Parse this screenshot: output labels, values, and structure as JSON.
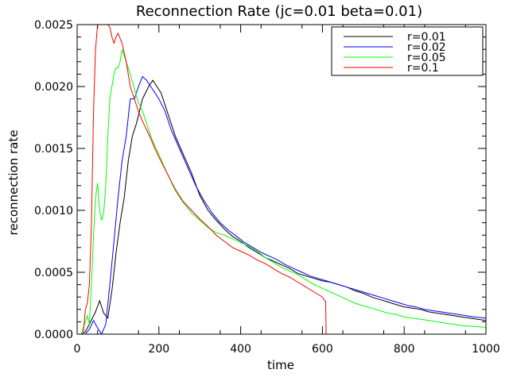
{
  "chart_data": {
    "type": "line",
    "title": "Reconnection Rate (jc=0.01 beta=0.01)",
    "xlabel": "time",
    "ylabel": "reconnection rate",
    "xlim": [
      0,
      1000
    ],
    "ylim": [
      0,
      0.0025
    ],
    "x_ticks": [
      "0",
      "200",
      "400",
      "600",
      "800",
      "1000"
    ],
    "y_ticks": [
      "0.0000",
      "0.0005",
      "0.0010",
      "0.0015",
      "0.0020",
      "0.0025"
    ],
    "legend_position": "top-right",
    "grid": false,
    "series": [
      {
        "name": "r=0.01",
        "color": "#000000",
        "points": [
          [
            10,
            0
          ],
          [
            20,
            2e-05
          ],
          [
            30,
            8e-05
          ],
          [
            45,
            0.00018
          ],
          [
            55,
            0.00027
          ],
          [
            65,
            0.00017
          ],
          [
            75,
            0.00013
          ],
          [
            85,
            0.00035
          ],
          [
            95,
            0.00065
          ],
          [
            105,
            0.0009
          ],
          [
            115,
            0.0011
          ],
          [
            125,
            0.0014
          ],
          [
            135,
            0.0016
          ],
          [
            145,
            0.0017
          ],
          [
            160,
            0.0019
          ],
          [
            175,
            0.002
          ],
          [
            185,
            0.00205
          ],
          [
            195,
            0.002
          ],
          [
            205,
            0.00195
          ],
          [
            220,
            0.0018
          ],
          [
            240,
            0.0016
          ],
          [
            260,
            0.00145
          ],
          [
            280,
            0.0013
          ],
          [
            300,
            0.00112
          ],
          [
            320,
            0.001
          ],
          [
            340,
            0.00092
          ],
          [
            360,
            0.00085
          ],
          [
            380,
            0.00079
          ],
          [
            400,
            0.00075
          ],
          [
            420,
            0.0007
          ],
          [
            440,
            0.00066
          ],
          [
            460,
            0.00062
          ],
          [
            480,
            0.00059
          ],
          [
            500,
            0.00056
          ],
          [
            520,
            0.00053
          ],
          [
            540,
            0.00049
          ],
          [
            560,
            0.00047
          ],
          [
            580,
            0.00045
          ],
          [
            600,
            0.00043
          ],
          [
            620,
            0.00042
          ],
          [
            640,
            0.0004
          ],
          [
            660,
            0.00038
          ],
          [
            680,
            0.00035
          ],
          [
            700,
            0.00033
          ],
          [
            720,
            0.0003
          ],
          [
            740,
            0.00028
          ],
          [
            760,
            0.00026
          ],
          [
            780,
            0.00024
          ],
          [
            800,
            0.00022
          ],
          [
            820,
            0.00021
          ],
          [
            840,
            0.0002
          ],
          [
            860,
            0.00018
          ],
          [
            880,
            0.00017
          ],
          [
            900,
            0.00016
          ],
          [
            920,
            0.00015
          ],
          [
            940,
            0.00014
          ],
          [
            960,
            0.00013
          ],
          [
            980,
            0.00012
          ],
          [
            1000,
            0.00011
          ]
        ]
      },
      {
        "name": "r=0.02",
        "color": "#0000ff",
        "points": [
          [
            5,
            0
          ],
          [
            20,
            0
          ],
          [
            30,
            4e-05
          ],
          [
            40,
            0.00011
          ],
          [
            50,
            5e-05
          ],
          [
            60,
            0
          ],
          [
            70,
            8e-05
          ],
          [
            80,
            0.0004
          ],
          [
            90,
            0.00075
          ],
          [
            100,
            0.0011
          ],
          [
            110,
            0.0014
          ],
          [
            120,
            0.0016
          ],
          [
            130,
            0.0019
          ],
          [
            140,
            0.0019
          ],
          [
            150,
            0.002
          ],
          [
            160,
            0.00208
          ],
          [
            170,
            0.00205
          ],
          [
            180,
            0.002
          ],
          [
            190,
            0.00195
          ],
          [
            200,
            0.0019
          ],
          [
            215,
            0.0018
          ],
          [
            230,
            0.00165
          ],
          [
            250,
            0.0015
          ],
          [
            270,
            0.00135
          ],
          [
            290,
            0.0012
          ],
          [
            310,
            0.00108
          ],
          [
            330,
            0.00098
          ],
          [
            350,
            0.0009
          ],
          [
            370,
            0.00084
          ],
          [
            390,
            0.00079
          ],
          [
            410,
            0.00074
          ],
          [
            430,
            0.0007
          ],
          [
            450,
            0.00066
          ],
          [
            470,
            0.00063
          ],
          [
            490,
            0.0006
          ],
          [
            510,
            0.00056
          ],
          [
            530,
            0.00053
          ],
          [
            550,
            0.0005
          ],
          [
            570,
            0.00047
          ],
          [
            590,
            0.00045
          ],
          [
            610,
            0.00043
          ],
          [
            630,
            0.00041
          ],
          [
            650,
            0.00039
          ],
          [
            670,
            0.00037
          ],
          [
            690,
            0.00035
          ],
          [
            710,
            0.00033
          ],
          [
            730,
            0.00031
          ],
          [
            750,
            0.00029
          ],
          [
            770,
            0.00027
          ],
          [
            790,
            0.00025
          ],
          [
            810,
            0.00023
          ],
          [
            830,
            0.00022
          ],
          [
            850,
            0.0002
          ],
          [
            870,
            0.00019
          ],
          [
            890,
            0.00018
          ],
          [
            910,
            0.00017
          ],
          [
            930,
            0.00016
          ],
          [
            950,
            0.00015
          ],
          [
            970,
            0.00014
          ],
          [
            1000,
            0.00013
          ]
        ]
      },
      {
        "name": "r=0.05",
        "color": "#00ff00",
        "points": [
          [
            5,
            0
          ],
          [
            10,
            0
          ],
          [
            15,
            5e-05
          ],
          [
            25,
            0.00015
          ],
          [
            30,
            8e-05
          ],
          [
            35,
            0.0004
          ],
          [
            40,
            0.0008
          ],
          [
            45,
            0.0011
          ],
          [
            50,
            0.00122
          ],
          [
            55,
            0.001
          ],
          [
            60,
            0.00092
          ],
          [
            65,
            0.00098
          ],
          [
            70,
            0.0012
          ],
          [
            75,
            0.0016
          ],
          [
            80,
            0.0019
          ],
          [
            85,
            0.002
          ],
          [
            90,
            0.0021
          ],
          [
            95,
            0.00215
          ],
          [
            100,
            0.00215
          ],
          [
            105,
            0.0022
          ],
          [
            110,
            0.0023
          ],
          [
            115,
            0.00225
          ],
          [
            120,
            0.0022
          ],
          [
            130,
            0.0021
          ],
          [
            140,
            0.00198
          ],
          [
            150,
            0.00187
          ],
          [
            160,
            0.0018
          ],
          [
            170,
            0.0017
          ],
          [
            180,
            0.0016
          ],
          [
            190,
            0.00152
          ],
          [
            200,
            0.00145
          ],
          [
            220,
            0.0013
          ],
          [
            240,
            0.00116
          ],
          [
            260,
            0.00106
          ],
          [
            280,
            0.00098
          ],
          [
            300,
            0.00092
          ],
          [
            320,
            0.00086
          ],
          [
            340,
            0.00082
          ],
          [
            360,
            0.0008
          ],
          [
            380,
            0.00077
          ],
          [
            400,
            0.00074
          ],
          [
            420,
            0.00071
          ],
          [
            440,
            0.00067
          ],
          [
            460,
            0.00062
          ],
          [
            480,
            0.00058
          ],
          [
            500,
            0.00054
          ],
          [
            520,
            0.00051
          ],
          [
            540,
            0.00048
          ],
          [
            560,
            0.00044
          ],
          [
            580,
            0.0004
          ],
          [
            600,
            0.00037
          ],
          [
            620,
            0.00034
          ],
          [
            640,
            0.00031
          ],
          [
            660,
            0.00028
          ],
          [
            680,
            0.00025
          ],
          [
            700,
            0.00023
          ],
          [
            720,
            0.00021
          ],
          [
            740,
            0.00019
          ],
          [
            760,
            0.00017
          ],
          [
            780,
            0.00016
          ],
          [
            800,
            0.00014
          ],
          [
            820,
            0.00013
          ],
          [
            840,
            0.00012
          ],
          [
            860,
            0.00011
          ],
          [
            880,
            0.0001
          ],
          [
            900,
            9e-05
          ],
          [
            920,
            8e-05
          ],
          [
            940,
            7e-05
          ],
          [
            960,
            6.5e-05
          ],
          [
            980,
            6e-05
          ],
          [
            1000,
            5.5e-05
          ]
        ]
      },
      {
        "name": "r=0.1",
        "color": "#ff0000",
        "points": [
          [
            15,
            1e-05
          ],
          [
            20,
            0.0002
          ],
          [
            25,
            0.00025
          ],
          [
            30,
            0.0004
          ],
          [
            35,
            0.0009
          ],
          [
            40,
            0.0018
          ],
          [
            45,
            0.0023
          ],
          [
            50,
            0.0025
          ],
          [
            55,
            0.0026
          ],
          [
            60,
            0.0026
          ],
          [
            65,
            0.0025
          ],
          [
            70,
            0.0025
          ],
          [
            75,
            0.0025
          ],
          [
            80,
            0.00248
          ],
          [
            85,
            0.0024
          ],
          [
            90,
            0.00235
          ],
          [
            95,
            0.0024
          ],
          [
            100,
            0.00243
          ],
          [
            110,
            0.00235
          ],
          [
            120,
            0.0022
          ],
          [
            130,
            0.002
          ],
          [
            140,
            0.0019
          ],
          [
            150,
            0.0018
          ],
          [
            160,
            0.00172
          ],
          [
            170,
            0.00165
          ],
          [
            180,
            0.00158
          ],
          [
            190,
            0.0015
          ],
          [
            200,
            0.00143
          ],
          [
            220,
            0.0013
          ],
          [
            240,
            0.00117
          ],
          [
            260,
            0.00107
          ],
          [
            280,
            0.001
          ],
          [
            300,
            0.00093
          ],
          [
            320,
            0.00087
          ],
          [
            340,
            0.0008
          ],
          [
            360,
            0.00075
          ],
          [
            380,
            0.0007
          ],
          [
            400,
            0.00067
          ],
          [
            420,
            0.00064
          ],
          [
            440,
            0.0006
          ],
          [
            460,
            0.00057
          ],
          [
            480,
            0.00053
          ],
          [
            500,
            0.00049
          ],
          [
            520,
            0.00046
          ],
          [
            540,
            0.00042
          ],
          [
            560,
            0.00038
          ],
          [
            580,
            0.00034
          ],
          [
            600,
            0.0003
          ],
          [
            608,
            0.00026
          ],
          [
            609,
            0.0
          ],
          [
            612,
            0
          ]
        ]
      }
    ]
  }
}
